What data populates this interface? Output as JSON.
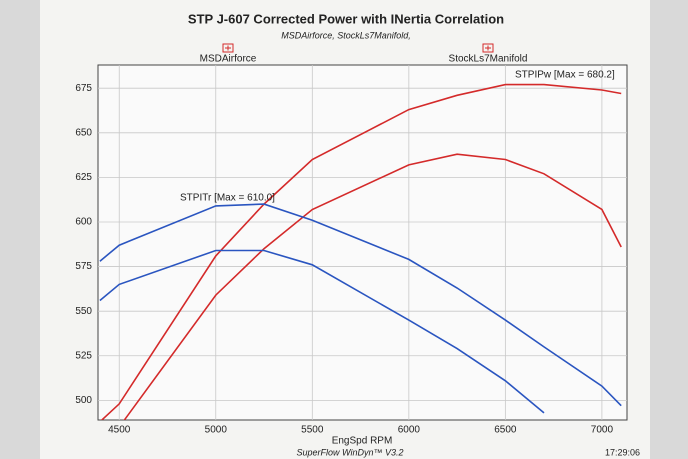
{
  "chart_data": {
    "type": "line",
    "title": "STP J-607 Corrected Power with INertia Correlation",
    "subtitle": "MSDAirforce, StockLs7Manifold,",
    "x_label": "EngSpd RPM",
    "legend": [
      "MSDAirforce",
      "StockLs7Manifold"
    ],
    "annotations": [
      "STPIPw [Max = 680.2]",
      "STPITr [Max = 610.0]"
    ],
    "footer": [
      "SuperFlow WinDyn™ V3.2",
      "17:29:06"
    ],
    "x": [
      4400,
      4500,
      5000,
      5250,
      5500,
      6000,
      6250,
      6500,
      6700,
      7000,
      7100
    ],
    "series": [
      {
        "color": "#d42a2a",
        "values": [
          488,
          498,
          581,
          610,
          635,
          663,
          671,
          677,
          677,
          674,
          672
        ]
      },
      {
        "color": "#d42a2a",
        "values": [
          null,
          485,
          559,
          585,
          607,
          632,
          638,
          635,
          627,
          607,
          586
        ]
      },
      {
        "color": "#2a55c0",
        "values": [
          578,
          587,
          609,
          610,
          601,
          579,
          563,
          545,
          530,
          508,
          497
        ]
      },
      {
        "color": "#2a55c0",
        "values": [
          556,
          565,
          584,
          584,
          576,
          545,
          529,
          511,
          493,
          null,
          null
        ]
      }
    ],
    "xlim": [
      4390,
      7130
    ],
    "ylim": [
      489,
      688
    ],
    "xticks": [
      4500,
      5000,
      5500,
      6000,
      6500,
      7000
    ],
    "yticks": [
      500,
      525,
      550,
      575,
      600,
      625,
      650,
      675
    ],
    "grid": true
  }
}
